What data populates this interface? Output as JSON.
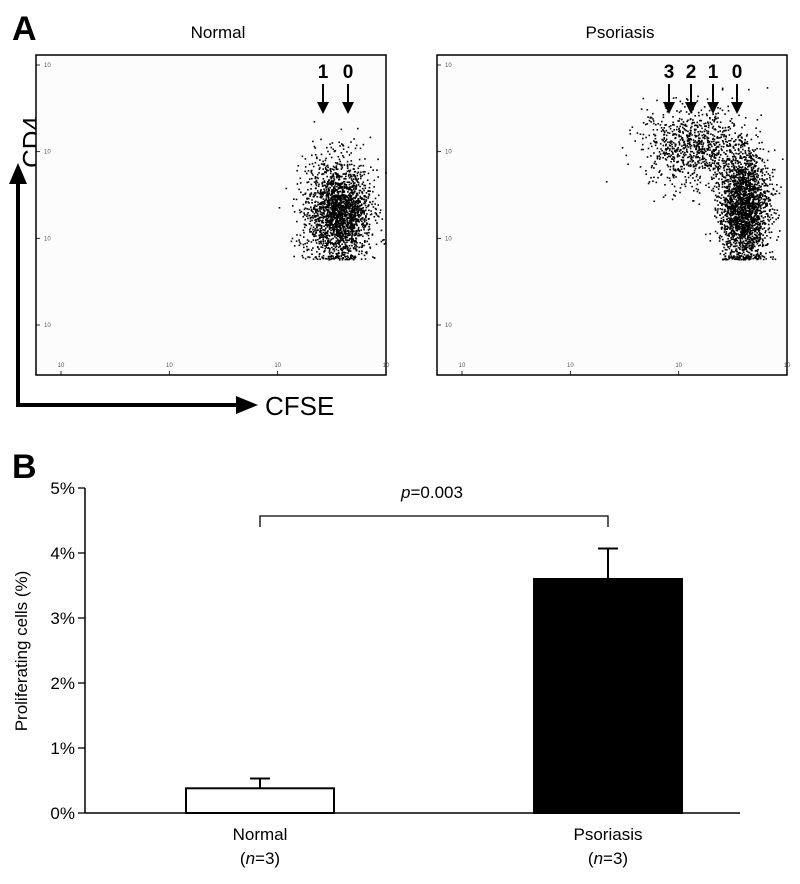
{
  "panel_a": {
    "letter": "A",
    "y_axis_label": "CD4",
    "x_axis_label": "CFSE",
    "plots": [
      {
        "title": "Normal",
        "division_labels": [
          "1",
          "0"
        ],
        "tick_labels_x": [
          "10",
          "10",
          "10",
          "10"
        ],
        "tick_labels_y": [
          "10",
          "10",
          "10",
          "10"
        ]
      },
      {
        "title": "Psoriasis",
        "division_labels": [
          "3",
          "2",
          "1",
          "0"
        ],
        "tick_labels_x": [
          "10",
          "10",
          "10",
          "10"
        ],
        "tick_labels_y": [
          "10",
          "10",
          "10",
          "10"
        ]
      }
    ]
  },
  "panel_b": {
    "letter": "B",
    "p_value": {
      "prefix": "p",
      "value": "=0.003"
    }
  },
  "chart_data": [
    {
      "type": "scatter",
      "title": "Normal",
      "xlabel": "CFSE",
      "ylabel": "CD4",
      "xlim": [
        0,
        4
      ],
      "ylim": [
        0,
        4
      ],
      "scale": "log",
      "clusters": [
        {
          "center": [
            3.45,
            2.05
          ],
          "spread": [
            0.18,
            0.32
          ],
          "density": "dense"
        }
      ]
    },
    {
      "type": "scatter",
      "title": "Psoriasis",
      "xlabel": "CFSE",
      "ylabel": "CD4",
      "xlim": [
        0,
        4
      ],
      "ylim": [
        0,
        4
      ],
      "scale": "log",
      "clusters": [
        {
          "center": [
            3.5,
            2.1
          ],
          "spread": [
            0.14,
            0.35
          ],
          "density": "dense"
        },
        {
          "center": [
            2.95,
            2.85
          ],
          "spread": [
            0.3,
            0.25
          ],
          "density": "medium"
        }
      ]
    },
    {
      "type": "bar",
      "categories": [
        "Normal",
        "Psoriasis"
      ],
      "category_notes": [
        "n=3",
        "n=3"
      ],
      "values": [
        0.38,
        3.6
      ],
      "errors": [
        0.15,
        0.47
      ],
      "bar_colors": [
        "#ffffff",
        "#000000"
      ],
      "ylabel": "Proliferating cells (%)",
      "ylim": [
        0,
        5
      ],
      "yticks": [
        "0%",
        "1%",
        "2%",
        "3%",
        "4%",
        "5%"
      ],
      "annotation": "p=0.003"
    }
  ]
}
